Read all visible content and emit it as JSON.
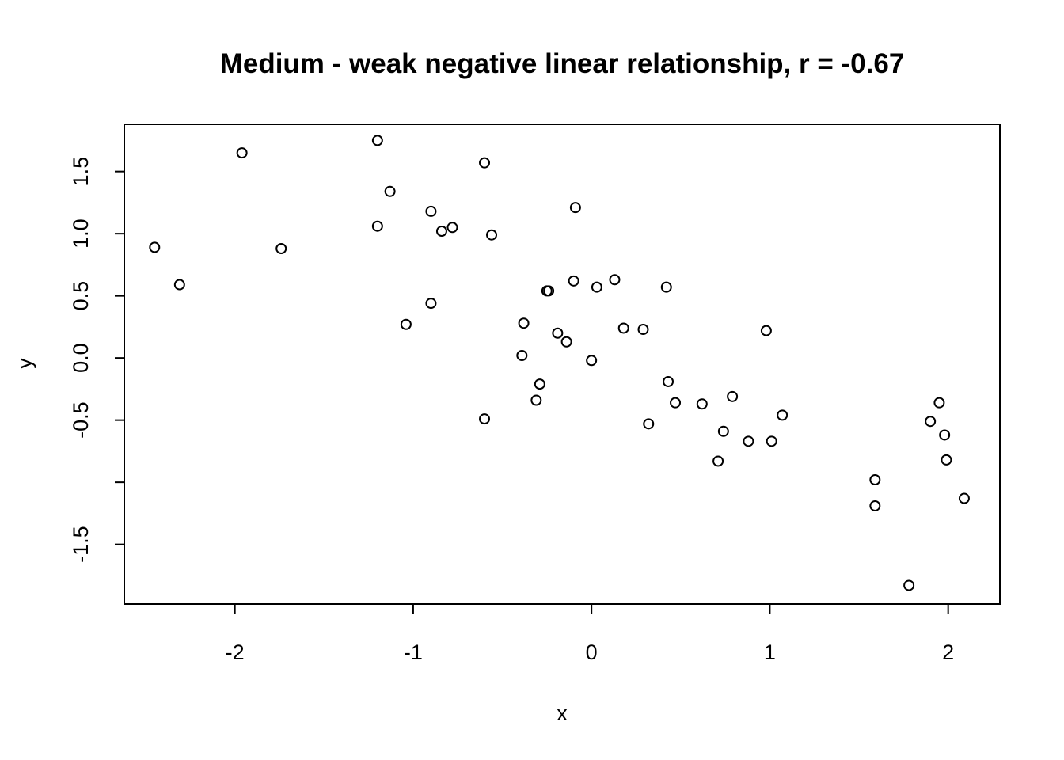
{
  "chart_data": {
    "type": "scatter",
    "title": "Medium - weak negative linear relationship, r = -0.67",
    "xlabel": "x",
    "ylabel": "y",
    "xlim": [
      -2.62,
      2.29
    ],
    "ylim": [
      -1.98,
      1.88
    ],
    "grid": false,
    "legend": "none",
    "x_ticks": [
      -2,
      -1,
      0,
      1,
      2
    ],
    "x_tick_labels": [
      "-2",
      "-1",
      "0",
      "1",
      "2"
    ],
    "y_ticks": [
      -1.5,
      -1.0,
      -0.5,
      0.0,
      0.5,
      1.0,
      1.5
    ],
    "y_tick_labels": [
      "-1.5",
      "",
      "-0.5",
      "0.0",
      "0.5",
      "1.0",
      "1.5"
    ],
    "x": [
      -2.45,
      -2.31,
      -1.96,
      -1.74,
      -1.2,
      -1.2,
      -1.13,
      -1.04,
      -0.9,
      -0.9,
      -0.84,
      -0.78,
      -0.6,
      -0.6,
      -0.56,
      -0.39,
      -0.38,
      -0.31,
      -0.29,
      -0.25,
      -0.24,
      -0.19,
      -0.14,
      -0.1,
      -0.09,
      0.0,
      0.03,
      0.13,
      0.18,
      0.29,
      0.32,
      0.42,
      0.43,
      0.47,
      0.62,
      0.71,
      0.74,
      0.79,
      0.88,
      0.98,
      1.01,
      1.07,
      1.59,
      1.59,
      1.78,
      1.9,
      1.95,
      1.98,
      1.99,
      2.09
    ],
    "y": [
      0.89,
      0.59,
      1.65,
      0.88,
      1.75,
      1.06,
      1.34,
      0.27,
      1.18,
      0.44,
      1.02,
      1.05,
      1.57,
      -0.49,
      0.99,
      0.02,
      0.28,
      -0.34,
      -0.21,
      0.54,
      0.54,
      0.2,
      0.13,
      0.62,
      1.21,
      -0.02,
      0.57,
      0.63,
      0.24,
      0.23,
      -0.53,
      0.57,
      -0.19,
      -0.36,
      -0.37,
      -0.83,
      -0.59,
      -0.31,
      -0.67,
      0.22,
      -0.67,
      -0.46,
      -0.98,
      -1.19,
      -1.83,
      -0.51,
      -0.36,
      -0.62,
      -0.82,
      -1.13
    ]
  }
}
